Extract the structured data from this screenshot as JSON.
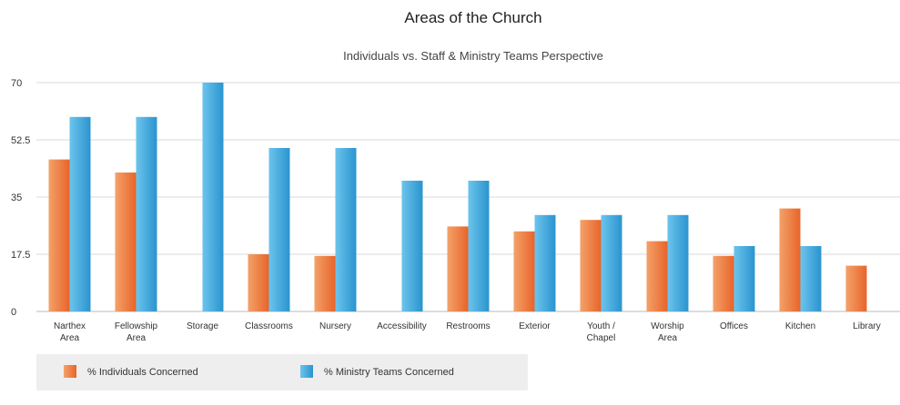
{
  "chart_data": {
    "type": "bar",
    "title": "Areas of the Church",
    "subtitle": "Individuals vs. Staff & Ministry Teams Perspective",
    "xlabel": "",
    "ylabel": "",
    "ylim": [
      0,
      70
    ],
    "yticks": [
      "0",
      "17.5",
      "35",
      "52.5",
      "70"
    ],
    "grid": true,
    "legend_position": "bottom-left",
    "categories": [
      [
        "Narthex",
        "Area"
      ],
      [
        "Fellowship",
        "Area"
      ],
      [
        "Storage"
      ],
      [
        "Classrooms"
      ],
      [
        "Nursery"
      ],
      [
        "Accessibility"
      ],
      [
        "Restrooms"
      ],
      [
        "Exterior"
      ],
      [
        "Youth /",
        "Chapel"
      ],
      [
        "Worship",
        "Area"
      ],
      [
        "Offices"
      ],
      [
        "Kitchen"
      ],
      [
        "Library"
      ]
    ],
    "series": [
      {
        "name": "% Individuals Concerned",
        "color": "#ee7a3c",
        "values": [
          46.5,
          42.5,
          0,
          17.5,
          17,
          0,
          26,
          24.5,
          28,
          21.5,
          17,
          31.5,
          14
        ]
      },
      {
        "name": "% Ministry Teams Concerned",
        "color": "#36a3d9",
        "values": [
          59.5,
          59.5,
          70,
          50,
          50,
          40,
          40,
          29.5,
          29.5,
          29.5,
          20,
          20,
          0
        ]
      }
    ]
  }
}
